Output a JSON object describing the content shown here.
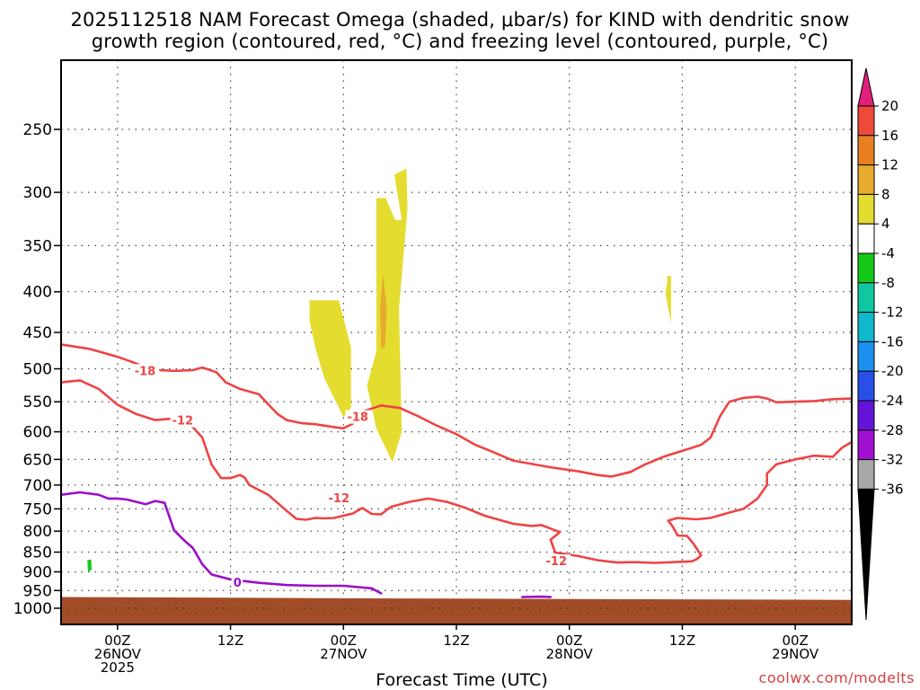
{
  "chart_data": {
    "type": "time-height cross section (shaded + contoured)",
    "title_line1": "2025112518 NAM Forecast Omega (shaded, μbar/s) for KIND with dendritic snow",
    "title_line2": "growth region (contoured, red, °C) and freezing level (contoured, purple, °C)",
    "xlabel": "Forecast Time (UTC)",
    "credit": "coolwx.com/modelts",
    "y_axis": {
      "variable": "pressure (hPa)",
      "scale": "log, reversed",
      "range": [
        1000,
        200
      ],
      "ticks": [
        "250",
        "300",
        "350",
        "400",
        "450",
        "500",
        "550",
        "600",
        "650",
        "700",
        "750",
        "800",
        "850",
        "900",
        "950",
        "1000"
      ]
    },
    "x_axis": {
      "range_hours_from_2025-11-25_18Z": [
        0,
        84
      ],
      "ticks": [
        {
          "hour": 6,
          "lines": [
            "00Z",
            "26NOV",
            "2025"
          ]
        },
        {
          "hour": 18,
          "lines": [
            "12Z"
          ]
        },
        {
          "hour": 30,
          "lines": [
            "00Z",
            "27NOV"
          ]
        },
        {
          "hour": 42,
          "lines": [
            "12Z"
          ]
        },
        {
          "hour": 54,
          "lines": [
            "00Z",
            "28NOV"
          ]
        },
        {
          "hour": 66,
          "lines": [
            "12Z"
          ]
        },
        {
          "hour": 78,
          "lines": [
            "00Z",
            "29NOV"
          ]
        }
      ]
    },
    "grid": true,
    "colorbar": {
      "labels": [
        "20",
        "16",
        "12",
        "8",
        "4",
        "-4",
        "-8",
        "-12",
        "-16",
        "-20",
        "-24",
        "-28",
        "-32",
        "-36"
      ],
      "colors": {
        "top_arrow": "#e0207a",
        "16 to 20": "#ee4a3a",
        "12 to 16": "#e88022",
        "8 to 12": "#e6aa2c",
        "4 to 8": "#e5dc30",
        "-4 to 4": "#ffffff",
        "-8 to -4": "#14c818",
        "-12 to -8": "#10c8a0",
        "-16 to -12": "#10b8cc",
        "-20 to -16": "#1c90ee",
        "-24 to -20": "#2850e8",
        "-28 to -24": "#6414d8",
        "-32 to -28": "#a010d0",
        "-36 to -32": "#a8a8a8",
        "bottom_arrow": "#000000"
      }
    },
    "ground_color": "#a24d27",
    "contours": [
      {
        "type": "dendritic growth",
        "level_c": -18,
        "color": "#ee4444",
        "label": "-18",
        "points": [
          [
            0,
            466
          ],
          [
            3,
            472
          ],
          [
            6,
            483
          ],
          [
            7.5,
            490
          ],
          [
            9,
            498
          ],
          [
            10.5,
            502
          ],
          [
            12,
            503
          ],
          [
            14,
            502
          ],
          [
            15,
            498
          ],
          [
            16.5,
            505
          ],
          [
            17.5,
            520
          ],
          [
            19,
            530
          ],
          [
            21,
            538
          ],
          [
            22,
            554
          ],
          [
            23,
            570
          ],
          [
            24,
            580
          ],
          [
            25.5,
            585
          ],
          [
            27,
            587
          ],
          [
            29,
            592
          ],
          [
            30,
            594
          ],
          [
            31,
            586
          ],
          [
            32,
            566
          ],
          [
            34,
            556
          ],
          [
            36,
            560
          ],
          [
            38,
            574
          ],
          [
            40,
            590
          ],
          [
            42,
            604
          ],
          [
            44,
            623
          ],
          [
            46,
            637
          ],
          [
            48,
            652
          ],
          [
            52,
            665
          ],
          [
            55,
            673
          ],
          [
            57,
            680
          ],
          [
            58.5,
            683
          ],
          [
            60.5,
            674
          ],
          [
            62,
            660
          ],
          [
            64,
            645
          ],
          [
            66,
            634
          ],
          [
            68,
            623
          ],
          [
            69,
            610
          ],
          [
            70,
            574
          ],
          [
            71,
            550
          ],
          [
            72.5,
            544
          ],
          [
            74,
            542
          ],
          [
            75,
            545
          ],
          [
            76,
            551
          ],
          [
            78,
            550
          ],
          [
            80,
            549
          ],
          [
            82,
            546
          ],
          [
            84,
            545
          ]
        ]
      },
      {
        "type": "dendritic growth",
        "level_c": -12,
        "color": "#ee4444",
        "label": "-12",
        "points": [
          [
            0,
            520
          ],
          [
            2,
            517
          ],
          [
            4,
            530
          ],
          [
            6,
            555
          ],
          [
            8,
            570
          ],
          [
            10,
            580
          ],
          [
            11.5,
            578
          ],
          [
            13,
            578
          ],
          [
            14,
            592
          ],
          [
            15,
            610
          ],
          [
            16,
            660
          ],
          [
            17,
            686
          ],
          [
            18,
            686
          ],
          [
            19,
            680
          ],
          [
            19.5,
            685
          ],
          [
            20,
            700
          ],
          [
            22,
            720
          ],
          [
            24,
            755
          ],
          [
            25,
            772
          ],
          [
            26,
            774
          ],
          [
            27,
            770
          ],
          [
            28,
            771
          ],
          [
            29,
            770
          ],
          [
            31,
            760
          ],
          [
            32,
            748
          ],
          [
            33,
            761
          ],
          [
            34,
            762
          ],
          [
            35,
            746
          ],
          [
            37,
            735
          ],
          [
            39,
            728
          ],
          [
            41,
            735
          ],
          [
            43,
            748
          ],
          [
            45,
            765
          ],
          [
            48,
            783
          ],
          [
            50,
            788
          ],
          [
            51,
            786
          ],
          [
            52,
            794
          ],
          [
            53,
            802
          ],
          [
            52,
            820
          ],
          [
            52.5,
            851
          ],
          [
            55,
            860
          ],
          [
            57,
            870
          ],
          [
            59,
            876
          ],
          [
            61,
            875
          ],
          [
            63,
            877
          ],
          [
            65,
            875
          ],
          [
            67,
            873
          ],
          [
            67.5,
            868
          ],
          [
            68,
            858
          ],
          [
            67.2,
            830
          ],
          [
            66.5,
            811
          ],
          [
            65.5,
            810
          ],
          [
            65,
            790
          ],
          [
            64.5,
            776
          ],
          [
            65.5,
            770
          ],
          [
            67.5,
            773
          ],
          [
            69,
            770
          ],
          [
            71,
            758
          ],
          [
            72.5,
            750
          ],
          [
            74,
            728
          ],
          [
            75,
            700
          ],
          [
            75,
            677
          ],
          [
            76,
            659
          ],
          [
            78,
            650
          ],
          [
            80,
            643
          ],
          [
            82,
            645
          ],
          [
            83,
            628
          ],
          [
            84,
            618
          ]
        ]
      },
      {
        "type": "freezing level",
        "level_c": 0,
        "color": "#9a10c8",
        "label": "0",
        "points": [
          [
            0,
            720
          ],
          [
            2,
            715
          ],
          [
            4,
            720
          ],
          [
            5,
            728
          ],
          [
            6,
            728
          ],
          [
            7,
            730
          ],
          [
            8,
            735
          ],
          [
            9,
            740
          ],
          [
            10,
            733
          ],
          [
            11,
            737
          ],
          [
            12,
            798
          ],
          [
            13,
            820
          ],
          [
            14,
            840
          ],
          [
            15,
            880
          ],
          [
            16,
            907
          ],
          [
            18,
            920
          ],
          [
            21,
            929
          ],
          [
            24,
            935
          ],
          [
            27,
            937
          ],
          [
            30,
            937
          ],
          [
            33,
            944
          ],
          [
            34,
            958
          ]
        ]
      },
      {
        "type": "freezing level",
        "level_c": 0,
        "color": "#9a10c8",
        "label": "",
        "points": [
          [
            49,
            968
          ],
          [
            51,
            967
          ],
          [
            52,
            968
          ]
        ]
      }
    ],
    "omega_shaded": [
      {
        "range": "4 to 8",
        "color": "#e5dc30",
        "points": [
          [
            26.4,
            410
          ],
          [
            29.5,
            410
          ],
          [
            30.8,
            470
          ],
          [
            30.8,
            560
          ],
          [
            30,
            575
          ],
          [
            28,
            515
          ],
          [
            27,
            470
          ],
          [
            26.4,
            435
          ]
        ]
      },
      {
        "range": "4 to 8",
        "color": "#e5dc30",
        "points": [
          [
            33.5,
            305
          ],
          [
            34.5,
            305
          ],
          [
            35.5,
            325
          ],
          [
            36.2,
            325
          ],
          [
            35.4,
            285
          ],
          [
            36.7,
            280
          ],
          [
            36.8,
            315
          ],
          [
            35.9,
            420
          ],
          [
            36.2,
            600
          ],
          [
            35.2,
            655
          ],
          [
            33.5,
            595
          ],
          [
            32.5,
            525
          ],
          [
            33.5,
            475
          ],
          [
            33.5,
            385
          ]
        ]
      },
      {
        "range": "8 to 12",
        "color": "#e6aa2c",
        "points": [
          [
            34.2,
            380
          ],
          [
            34.6,
            420
          ],
          [
            34.4,
            470
          ],
          [
            34,
            470
          ],
          [
            33.9,
            420
          ]
        ]
      },
      {
        "range": "4 to 8",
        "color": "#e5dc30",
        "points": [
          [
            64.4,
            382
          ],
          [
            64.8,
            382
          ],
          [
            64.8,
            438
          ],
          [
            64.2,
            402
          ],
          [
            64.4,
            388
          ]
        ]
      },
      {
        "range": "-8 to -4",
        "color": "#14c818",
        "points": [
          [
            2.8,
            870
          ],
          [
            3.2,
            868
          ],
          [
            3.25,
            895
          ],
          [
            2.85,
            900
          ]
        ]
      }
    ]
  }
}
